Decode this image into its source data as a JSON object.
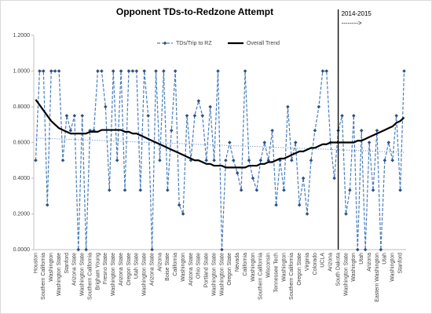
{
  "chart_data": {
    "type": "line",
    "title": "Opponent TDs-to-Redzone Attempt",
    "season_divider": {
      "category_index": 78,
      "label": "2014-2015",
      "arrow": "-------->"
    },
    "categories": [
      "Houston",
      null,
      "Southern California",
      null,
      "Washington",
      null,
      "Washington State",
      null,
      "Stanford",
      null,
      "Arizona State",
      null,
      "Washington State",
      null,
      "Southern California",
      null,
      "Brigham Young",
      null,
      "Fresno State",
      null,
      "Washington State",
      null,
      "Arizona State",
      null,
      "Oregon State",
      null,
      "Utah State",
      null,
      "Washington State",
      null,
      "Arizona State",
      null,
      "Arizona",
      null,
      "Boise State",
      null,
      "California",
      null,
      "Washington",
      null,
      "Arizona State",
      null,
      "Ohio State",
      null,
      "Portland State",
      null,
      "Washington State",
      null,
      "Washington State",
      null,
      "Oregon State",
      null,
      "Nevada",
      null,
      "California",
      null,
      "Washington",
      null,
      "Southern California",
      null,
      "Wisconsin",
      null,
      "Tennessee Tech",
      null,
      "Washington",
      null,
      "Southern California",
      null,
      "Oregon State",
      null,
      "Virginia",
      null,
      "Colorado",
      null,
      "UCLA",
      null,
      "Arizona",
      null,
      "South Dakota",
      null,
      "Washington State",
      null,
      "Washington",
      null,
      "Utah",
      null,
      "Arizona",
      null,
      "Eastern Washington",
      null,
      "Utah",
      null,
      "Washington",
      null,
      "Stanford",
      null
    ],
    "series": [
      {
        "name": "TDs/Trip to RZ",
        "color": "#4a7ebb",
        "style": "dashed-diamond",
        "values": [
          0.5,
          1,
          1,
          0.25,
          1,
          1,
          1,
          0.5,
          0.75,
          0.667,
          0.75,
          0,
          0.75,
          0,
          0.667,
          0.667,
          1,
          1,
          0.8,
          0.333,
          1,
          0.5,
          1,
          0.333,
          1,
          1,
          1,
          0.333,
          1,
          0.75,
          0,
          1,
          0.5,
          1,
          0.333,
          0.667,
          1,
          0.25,
          0.2,
          0.75,
          0.5,
          0.75,
          0.833,
          0.75,
          0.5,
          0.8,
          0.5,
          1,
          0,
          0.5,
          0.6,
          0.5,
          0.429,
          0.333,
          1,
          0.5,
          0.4,
          0.333,
          0.5,
          0.6,
          0.5,
          0.667,
          0.25,
          0.5,
          0.333,
          0.8,
          0.5,
          0.6,
          0.25,
          0.4,
          0.2,
          0.5,
          0.667,
          0.8,
          1,
          1,
          0.6,
          0.4,
          0.667,
          0.75,
          0.2,
          0.333,
          0.75,
          0,
          0.667,
          0,
          0.6,
          0.333,
          0.667,
          0,
          0.5,
          0.6,
          0.5,
          0.75,
          0.333,
          1
        ]
      },
      {
        "name": "Overall Trend",
        "color": "#000000",
        "style": "solid",
        "values": [
          0.84,
          0.81,
          0.78,
          0.75,
          0.72,
          0.7,
          0.68,
          0.67,
          0.66,
          0.65,
          0.65,
          0.65,
          0.65,
          0.65,
          0.66,
          0.66,
          0.66,
          0.67,
          0.67,
          0.67,
          0.67,
          0.67,
          0.67,
          0.66,
          0.66,
          0.65,
          0.65,
          0.64,
          0.63,
          0.62,
          0.61,
          0.6,
          0.59,
          0.58,
          0.57,
          0.56,
          0.55,
          0.54,
          0.53,
          0.52,
          0.51,
          0.5,
          0.5,
          0.49,
          0.48,
          0.48,
          0.47,
          0.47,
          0.47,
          0.46,
          0.46,
          0.46,
          0.46,
          0.46,
          0.46,
          0.47,
          0.47,
          0.47,
          0.48,
          0.48,
          0.49,
          0.49,
          0.5,
          0.51,
          0.51,
          0.52,
          0.53,
          0.54,
          0.55,
          0.55,
          0.56,
          0.57,
          0.57,
          0.58,
          0.59,
          0.59,
          0.6,
          0.6,
          0.6,
          0.6,
          0.6,
          0.6,
          0.6,
          0.61,
          0.61,
          0.62,
          0.63,
          0.64,
          0.65,
          0.66,
          0.67,
          0.68,
          0.69,
          0.71,
          0.72,
          0.74
        ]
      }
    ],
    "linear_trend": {
      "color": "#4a7ebb",
      "values": [
        0.625,
        0.545
      ]
    },
    "ylim": [
      0,
      1.2
    ],
    "yticks": [
      {
        "value": 0,
        "label": "0.0000"
      },
      {
        "value": 0.2,
        "label": "0.2000"
      },
      {
        "value": 0.4,
        "label": "0.4000"
      },
      {
        "value": 0.6,
        "label": "0.6000"
      },
      {
        "value": 0.8,
        "label": "0.8000"
      },
      {
        "value": 1,
        "label": "1.0000"
      },
      {
        "value": 1.2,
        "label": "1.2000"
      }
    ],
    "grid": false,
    "legend": "top"
  }
}
